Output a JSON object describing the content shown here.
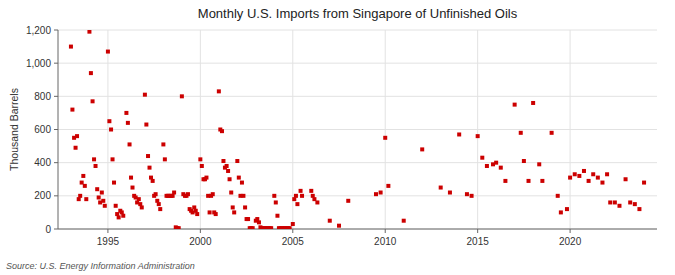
{
  "chart_data": {
    "type": "scatter",
    "title": "Monthly U.S. Imports from Singapore of Unfinished Oils",
    "ylabel": "Thousand Barrels",
    "annotations": [
      "Source: U.S. Energy Information Administration"
    ],
    "color": "#cc0000",
    "marker": "square",
    "grid": true,
    "xlim": [
      1992.3,
      2024.7
    ],
    "xticks": [
      1995,
      2000,
      2005,
      2010,
      2015,
      2020
    ],
    "ylim": [
      0,
      1200
    ],
    "yticks": [
      0,
      200,
      400,
      600,
      800,
      {
        "value": 1000,
        "label": "1,000"
      },
      {
        "value": 1200,
        "label": "1,200"
      }
    ],
    "x": [
      1993.0,
      1993.08,
      1993.17,
      1993.25,
      1993.33,
      1993.42,
      1993.5,
      1993.58,
      1993.67,
      1993.75,
      1993.83,
      1994.0,
      1994.08,
      1994.17,
      1994.25,
      1994.33,
      1994.42,
      1994.5,
      1994.58,
      1994.67,
      1994.75,
      1994.83,
      1995.0,
      1995.08,
      1995.17,
      1995.25,
      1995.33,
      1995.42,
      1995.5,
      1995.58,
      1995.67,
      1995.75,
      1995.83,
      1996.0,
      1996.08,
      1996.17,
      1996.25,
      1996.33,
      1996.42,
      1996.5,
      1996.58,
      1996.67,
      1996.75,
      1996.83,
      1997.0,
      1997.08,
      1997.17,
      1997.25,
      1997.33,
      1997.42,
      1997.5,
      1997.58,
      1997.67,
      1997.75,
      1997.83,
      1998.0,
      1998.08,
      1998.17,
      1998.25,
      1998.33,
      1998.42,
      1998.5,
      1998.58,
      1998.67,
      1998.75,
      1998.83,
      1999.0,
      1999.08,
      1999.17,
      1999.25,
      1999.33,
      1999.42,
      1999.5,
      1999.58,
      1999.67,
      1999.75,
      1999.83,
      2000.0,
      2000.08,
      2000.17,
      2000.25,
      2000.33,
      2000.42,
      2000.5,
      2000.58,
      2000.67,
      2000.75,
      2000.83,
      2001.0,
      2001.08,
      2001.17,
      2001.25,
      2001.33,
      2001.42,
      2001.5,
      2001.58,
      2001.67,
      2001.75,
      2001.83,
      2002.0,
      2002.08,
      2002.17,
      2002.25,
      2002.33,
      2002.42,
      2002.5,
      2002.58,
      2002.67,
      2002.75,
      2002.83,
      2003.0,
      2003.08,
      2003.17,
      2003.25,
      2003.33,
      2003.42,
      2003.5,
      2003.58,
      2003.67,
      2003.75,
      2003.83,
      2004.0,
      2004.08,
      2004.17,
      2004.25,
      2004.33,
      2004.42,
      2004.5,
      2004.58,
      2004.67,
      2004.75,
      2004.83,
      2005.0,
      2005.08,
      2005.17,
      2005.25,
      2005.42,
      2005.5,
      2006.0,
      2006.08,
      2006.17,
      2006.33,
      2007.0,
      2007.5,
      2008.0,
      2009.5,
      2009.75,
      2010.0,
      2010.17,
      2011.0,
      2012.0,
      2013.0,
      2013.5,
      2014.0,
      2014.42,
      2014.67,
      2015.0,
      2015.25,
      2015.5,
      2015.83,
      2016.0,
      2016.25,
      2016.5,
      2017.0,
      2017.33,
      2017.5,
      2017.75,
      2018.0,
      2018.33,
      2018.5,
      2019.0,
      2019.33,
      2019.5,
      2019.83,
      2020.0,
      2020.25,
      2020.5,
      2020.75,
      2021.0,
      2021.25,
      2021.5,
      2021.75,
      2022.0,
      2022.17,
      2022.42,
      2022.67,
      2023.0,
      2023.25,
      2023.5,
      2023.75,
      2024.0
    ],
    "values": [
      1100,
      720,
      550,
      490,
      560,
      180,
      200,
      280,
      320,
      260,
      180,
      1190,
      940,
      770,
      420,
      380,
      240,
      190,
      160,
      220,
      170,
      140,
      1070,
      650,
      600,
      420,
      280,
      140,
      90,
      70,
      110,
      100,
      80,
      700,
      640,
      510,
      310,
      250,
      200,
      190,
      160,
      180,
      150,
      130,
      810,
      630,
      440,
      370,
      310,
      290,
      200,
      210,
      170,
      150,
      120,
      510,
      420,
      200,
      200,
      200,
      200,
      200,
      220,
      10,
      5,
      5,
      800,
      210,
      200,
      200,
      210,
      120,
      110,
      100,
      130,
      110,
      90,
      420,
      380,
      300,
      300,
      310,
      200,
      100,
      200,
      210,
      100,
      90,
      830,
      600,
      590,
      410,
      370,
      380,
      350,
      300,
      220,
      130,
      100,
      410,
      310,
      200,
      280,
      200,
      130,
      60,
      60,
      5,
      5,
      5,
      50,
      60,
      40,
      10,
      5,
      5,
      5,
      5,
      5,
      5,
      5,
      200,
      160,
      80,
      5,
      5,
      5,
      5,
      5,
      5,
      5,
      5,
      30,
      180,
      200,
      150,
      230,
      200,
      230,
      200,
      180,
      160,
      50,
      20,
      170,
      210,
      220,
      550,
      260,
      50,
      480,
      250,
      220,
      570,
      210,
      200,
      560,
      430,
      380,
      390,
      400,
      370,
      290,
      750,
      580,
      410,
      290,
      760,
      390,
      290,
      580,
      200,
      100,
      120,
      310,
      330,
      320,
      350,
      290,
      330,
      310,
      280,
      330,
      160,
      160,
      140,
      300,
      160,
      150,
      120,
      280
    ]
  }
}
